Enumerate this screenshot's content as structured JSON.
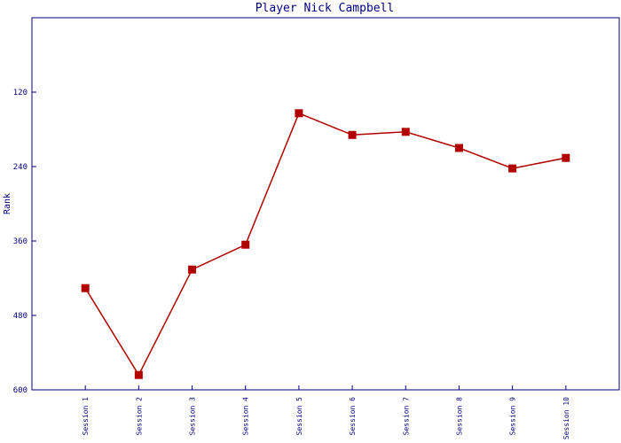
{
  "chart_data": {
    "type": "line",
    "title": "Player Nick Campbell",
    "y_label": "Rank",
    "categories": [
      "Session 1",
      "Session 2",
      "Session 3",
      "Session 4",
      "Session 5",
      "Session 6",
      "Session 7",
      "Session 8",
      "Session 9",
      "Session 10"
    ],
    "series": [
      {
        "color": "#b00000",
        "values": [
          436,
          576,
          406,
          366,
          154,
          189,
          184,
          210,
          243,
          226
        ]
      }
    ],
    "ylim": [
      600,
      0
    ],
    "yticks": [
      120,
      240,
      360,
      480,
      600
    ]
  }
}
